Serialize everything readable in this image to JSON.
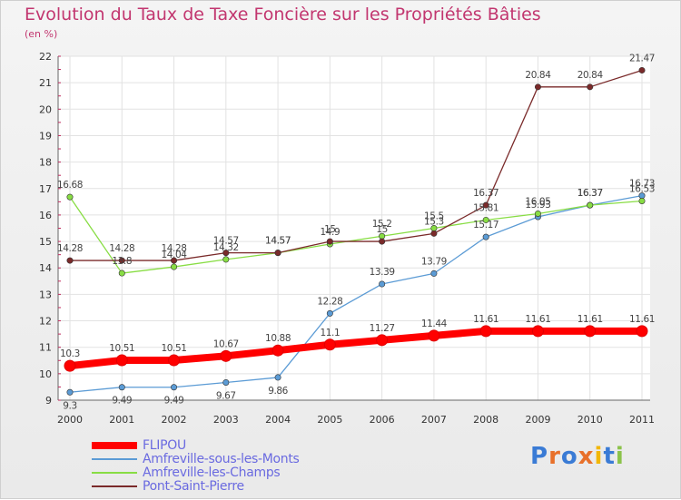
{
  "chart_data": {
    "type": "line",
    "title": "Evolution du Taux de Taxe Foncière sur les Propriétés Bâties",
    "subtitle": "(en %)",
    "categories": [
      "2000",
      "2001",
      "2002",
      "2003",
      "2004",
      "2005",
      "2006",
      "2007",
      "2008",
      "2009",
      "2010",
      "2011"
    ],
    "ylim": [
      9,
      22
    ],
    "yticks": [
      9,
      10,
      11,
      12,
      13,
      14,
      15,
      16,
      17,
      18,
      19,
      20,
      21,
      22
    ],
    "grid": true,
    "legend_position": "bottom-left",
    "series": [
      {
        "name": "FLIPOU",
        "color": "#ff0000",
        "values": [
          10.3,
          10.51,
          10.51,
          10.67,
          10.88,
          11.1,
          11.27,
          11.44,
          11.61,
          11.61,
          11.61,
          11.61
        ],
        "labels": [
          "10.3",
          "10.51",
          "10.51",
          "10.67",
          "10.88",
          "11.1",
          "11.27",
          "11.44",
          "11.61",
          "11.61",
          "11.61",
          "11.61"
        ]
      },
      {
        "name": "Amfreville-sous-les-Monts",
        "color": "#5b9bd5",
        "values": [
          9.3,
          9.49,
          9.49,
          9.67,
          9.86,
          12.28,
          13.39,
          13.79,
          15.17,
          15.93,
          16.37,
          16.73
        ],
        "labels": [
          "9.3",
          "9.49",
          "9.49",
          "9.67",
          "9.86",
          "12.28",
          "13.39",
          "13.79",
          "15.17",
          "15.93",
          "16.37",
          "16.73"
        ]
      },
      {
        "name": "Amfreville-les-Champs",
        "color": "#88dd44",
        "values": [
          16.68,
          13.8,
          14.04,
          14.32,
          14.57,
          14.9,
          15.2,
          15.5,
          15.81,
          16.05,
          16.37,
          16.53
        ],
        "labels": [
          "16.68",
          "13.8",
          "14.04",
          "14.32",
          "14.57",
          "14.9",
          "15.2",
          "15.5",
          "15.81",
          "16.05",
          "16.37",
          "16.53"
        ]
      },
      {
        "name": "Pont-Saint-Pierre",
        "color": "#7a2a2a",
        "values": [
          14.28,
          14.28,
          14.28,
          14.57,
          14.57,
          15.0,
          15.0,
          15.3,
          16.37,
          20.84,
          20.84,
          21.47
        ],
        "labels": [
          "14.28",
          "14.28",
          "14.28",
          "14.57",
          "14.57",
          "15",
          "15",
          "15.3",
          "16.37",
          "20.84",
          "20.84",
          "21.47"
        ]
      }
    ]
  },
  "logo": {
    "text": "Proxiti"
  }
}
